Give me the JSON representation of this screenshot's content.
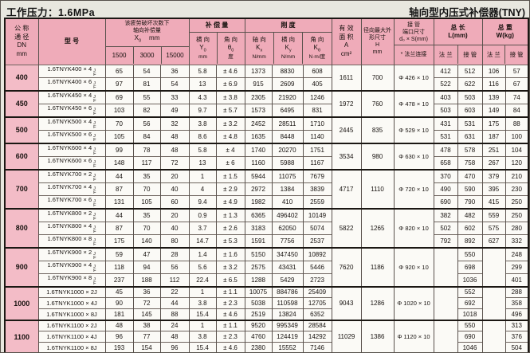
{
  "page": {
    "title_left": "工作压力：1.6MPa",
    "title_right": "轴向型内压式补偿器(TNY)"
  },
  "table": {
    "suffix": [
      "J",
      "F"
    ],
    "header": {
      "dn": "公 称\n通 径\nDN\nmm",
      "model": "型    号",
      "fatigue_title": "该疲劳破坏次数下\n轴向补偿量",
      "fatigue_sym": "X",
      "fatigue_sub": "0",
      "fatigue_unit": "mm",
      "fatigue_cols": [
        "1500",
        "3000",
        "15000"
      ],
      "comp_title": "补 偿 量",
      "comp_cols": [
        {
          "dir": "横 向",
          "sym": "Y",
          "sub": "0",
          "unit": "mm"
        },
        {
          "dir": "角 向",
          "sym": "θ",
          "sub": "0",
          "unit": "度"
        }
      ],
      "stiff_title": "刚  度",
      "stiff_cols": [
        {
          "dir": "轴 向",
          "sym": "K",
          "sub": "x",
          "unit": "N/mm"
        },
        {
          "dir": "横 向",
          "sym": "K",
          "sub": "y",
          "unit": "N/mm"
        },
        {
          "dir": "角 向",
          "sym": "K",
          "sub": "θ",
          "unit": "N·m/度"
        }
      ],
      "area": "有 效\n面 积\nA\ncm²",
      "h": "径向最大外\n形尺寸\nH\nmm",
      "pipe_title": "接 管\n端口尺寸\nd₀ × S(mm)",
      "pipe_sub": "* 法兰连接",
      "length_title": "总  长\nL(mm)",
      "weight_title": "总  重\nW(kg)",
      "conn_cols": [
        "法 兰",
        "接 管"
      ]
    },
    "groups": [
      {
        "dn": "400",
        "area": "1611",
        "h": "700",
        "pipe": "Φ 426 × 10",
        "rows": [
          {
            "model": "1.6TNYK400 × 4",
            "jf": true,
            "v": [
              "65",
              "54",
              "36",
              "5.8",
              "± 4.6",
              "1373",
              "8830",
              "608"
            ],
            "t": [
              "412",
              "512",
              "106",
              "57"
            ]
          },
          {
            "model": "1.6TNYK400 × 6",
            "jf": true,
            "v": [
              "97",
              "81",
              "54",
              "13",
              "± 6.9",
              "915",
              "2609",
              "405"
            ],
            "t": [
              "522",
              "622",
              "116",
              "67"
            ]
          }
        ]
      },
      {
        "dn": "450",
        "area": "1972",
        "h": "760",
        "pipe": "Φ 478 × 10",
        "rows": [
          {
            "model": "1.6TNYK450 × 4",
            "jf": true,
            "v": [
              "69",
              "55",
              "33",
              "4.3",
              "± 3.8",
              "2305",
              "21920",
              "1246"
            ],
            "t": [
              "403",
              "503",
              "139",
              "74"
            ]
          },
          {
            "model": "1.6TNYK450 × 6",
            "jf": true,
            "v": [
              "103",
              "82",
              "49",
              "9.7",
              "± 5.7",
              "1573",
              "6495",
              "831"
            ],
            "t": [
              "503",
              "603",
              "149",
              "84"
            ]
          }
        ]
      },
      {
        "dn": "500",
        "area": "2445",
        "h": "835",
        "pipe": "Φ 529 × 10",
        "rows": [
          {
            "model": "1.6TNYK500 × 4",
            "jf": true,
            "v": [
              "70",
              "56",
              "32",
              "3.8",
              "± 3.2",
              "2452",
              "28511",
              "1710"
            ],
            "t": [
              "431",
              "531",
              "175",
              "88"
            ]
          },
          {
            "model": "1.6TNYK500 × 6",
            "jf": true,
            "v": [
              "105",
              "84",
              "48",
              "8.6",
              "± 4.8",
              "1635",
              "8448",
              "1140"
            ],
            "t": [
              "531",
              "631",
              "187",
              "100"
            ]
          }
        ]
      },
      {
        "dn": "600",
        "area": "3534",
        "h": "980",
        "pipe": "Φ 630 × 10",
        "rows": [
          {
            "model": "1.6TNYK600 × 4",
            "jf": true,
            "v": [
              "99",
              "78",
              "48",
              "5.8",
              "± 4",
              "1740",
              "20270",
              "1751"
            ],
            "t": [
              "478",
              "578",
              "251",
              "104"
            ]
          },
          {
            "model": "1.6TNYK600 × 6",
            "jf": true,
            "v": [
              "148",
              "117",
              "72",
              "13",
              "± 6",
              "1160",
              "5988",
              "1167"
            ],
            "t": [
              "658",
              "758",
              "267",
              "120"
            ]
          }
        ]
      },
      {
        "dn": "700",
        "area": "4717",
        "h": "1110",
        "pipe": "Φ 720 × 10",
        "rows": [
          {
            "model": "1.6TNYK700 × 2",
            "jf": true,
            "v": [
              "44",
              "35",
              "20",
              "1",
              "± 1.5",
              "5944",
              "11075",
              "7679"
            ],
            "t": [
              "370",
              "470",
              "379",
              "210"
            ]
          },
          {
            "model": "1.6TNYK700 × 4",
            "jf": true,
            "v": [
              "87",
              "70",
              "40",
              "4",
              "± 2.9",
              "2972",
              "1384",
              "3839"
            ],
            "t": [
              "490",
              "590",
              "395",
              "230"
            ]
          },
          {
            "model": "1.6TNYK700 × 6",
            "jf": true,
            "v": [
              "131",
              "105",
              "60",
              "9.4",
              "± 4.9",
              "1982",
              "410",
              "2559"
            ],
            "t": [
              "690",
              "790",
              "415",
              "250"
            ]
          }
        ]
      },
      {
        "dn": "800",
        "area": "5822",
        "h": "1265",
        "pipe": "Φ 820 × 10",
        "rows": [
          {
            "model": "1.6TNYK800 × 2",
            "jf": true,
            "v": [
              "44",
              "35",
              "20",
              "0.9",
              "± 1.3",
              "6365",
              "496402",
              "10149"
            ],
            "t": [
              "382",
              "482",
              "559",
              "250"
            ]
          },
          {
            "model": "1.6TNYK800 × 4",
            "jf": true,
            "v": [
              "87",
              "70",
              "40",
              "3.7",
              "± 2.6",
              "3183",
              "62050",
              "5074"
            ],
            "t": [
              "502",
              "602",
              "575",
              "280"
            ]
          },
          {
            "model": "1.6TNYK800 × 8",
            "jf": true,
            "v": [
              "175",
              "140",
              "80",
              "14.7",
              "± 5.3",
              "1591",
              "7756",
              "2537"
            ],
            "t": [
              "792",
              "892",
              "627",
              "332"
            ]
          }
        ]
      },
      {
        "dn": "900",
        "area": "7620",
        "h": "1186",
        "pipe": "Φ 920 × 10",
        "flange_merged": true,
        "rows": [
          {
            "model": "1.6TNYK900 × 2",
            "jf": true,
            "v": [
              "59",
              "47",
              "28",
              "1.4",
              "± 1.6",
              "5150",
              "347450",
              "10892"
            ],
            "t": [
              "",
              "550",
              "",
              "248"
            ]
          },
          {
            "model": "1.6TNYK900 × 4",
            "jf": true,
            "v": [
              "118",
              "94",
              "56",
              "5.6",
              "± 3.2",
              "2575",
              "43431",
              "5446"
            ],
            "t": [
              "",
              "698",
              "",
              "299"
            ]
          },
          {
            "model": "1.6TNYK900 × 8",
            "jf": true,
            "v": [
              "237",
              "188",
              "112",
              "22.4",
              "± 6.5",
              "1288",
              "5429",
              "2723"
            ],
            "t": [
              "",
              "1036",
              "",
              "401"
            ]
          }
        ]
      },
      {
        "dn": "1000",
        "area": "9043",
        "h": "1286",
        "pipe": "Φ 1020 × 10",
        "flange_merged": true,
        "rows": [
          {
            "model": "1.6TNYK1000 × 2J",
            "jf": false,
            "v": [
              "45",
              "36",
              "22",
              "1",
              "± 1.1",
              "10075",
              "884786",
              "25409"
            ],
            "t": [
              "",
              "552",
              "",
              "288"
            ]
          },
          {
            "model": "1.6TNYK1000 × 4J",
            "jf": false,
            "v": [
              "90",
              "72",
              "44",
              "3.8",
              "± 2.3",
              "5038",
              "110598",
              "12705"
            ],
            "t": [
              "",
              "692",
              "",
              "358"
            ]
          },
          {
            "model": "1.6TNYK1000 × 8J",
            "jf": false,
            "v": [
              "181",
              "145",
              "88",
              "15.4",
              "± 4.6",
              "2519",
              "13824",
              "6352"
            ],
            "t": [
              "",
              "1018",
              "",
              "496"
            ]
          }
        ]
      },
      {
        "dn": "1100",
        "area": "11029",
        "h": "1386",
        "pipe": "Φ 1120 × 10",
        "flange_merged": true,
        "rows": [
          {
            "model": "1.6TNYK1100 × 2J",
            "jf": false,
            "v": [
              "48",
              "38",
              "24",
              "1",
              "± 1.1",
              "9520",
              "995349",
              "28584"
            ],
            "t": [
              "",
              "550",
              "",
              "313"
            ]
          },
          {
            "model": "1.6TNYK1100 × 4J",
            "jf": false,
            "v": [
              "96",
              "77",
              "48",
              "3.8",
              "± 2.3",
              "4760",
              "124419",
              "14292"
            ],
            "t": [
              "",
              "690",
              "",
              "376"
            ]
          },
          {
            "model": "1.6TNYK1100 × 8J",
            "jf": false,
            "v": [
              "193",
              "154",
              "96",
              "15.4",
              "± 4.6",
              "2380",
              "15552",
              "7146"
            ],
            "t": [
              "",
              "1046",
              "",
              "504"
            ]
          }
        ]
      }
    ]
  },
  "colors": {
    "header_pink": "#efabb9",
    "dn_pink": "#f3bcc7",
    "cell_white": "#fbfaf6",
    "line_dark": "#1b1713",
    "page_bg": "#e8e7df"
  }
}
